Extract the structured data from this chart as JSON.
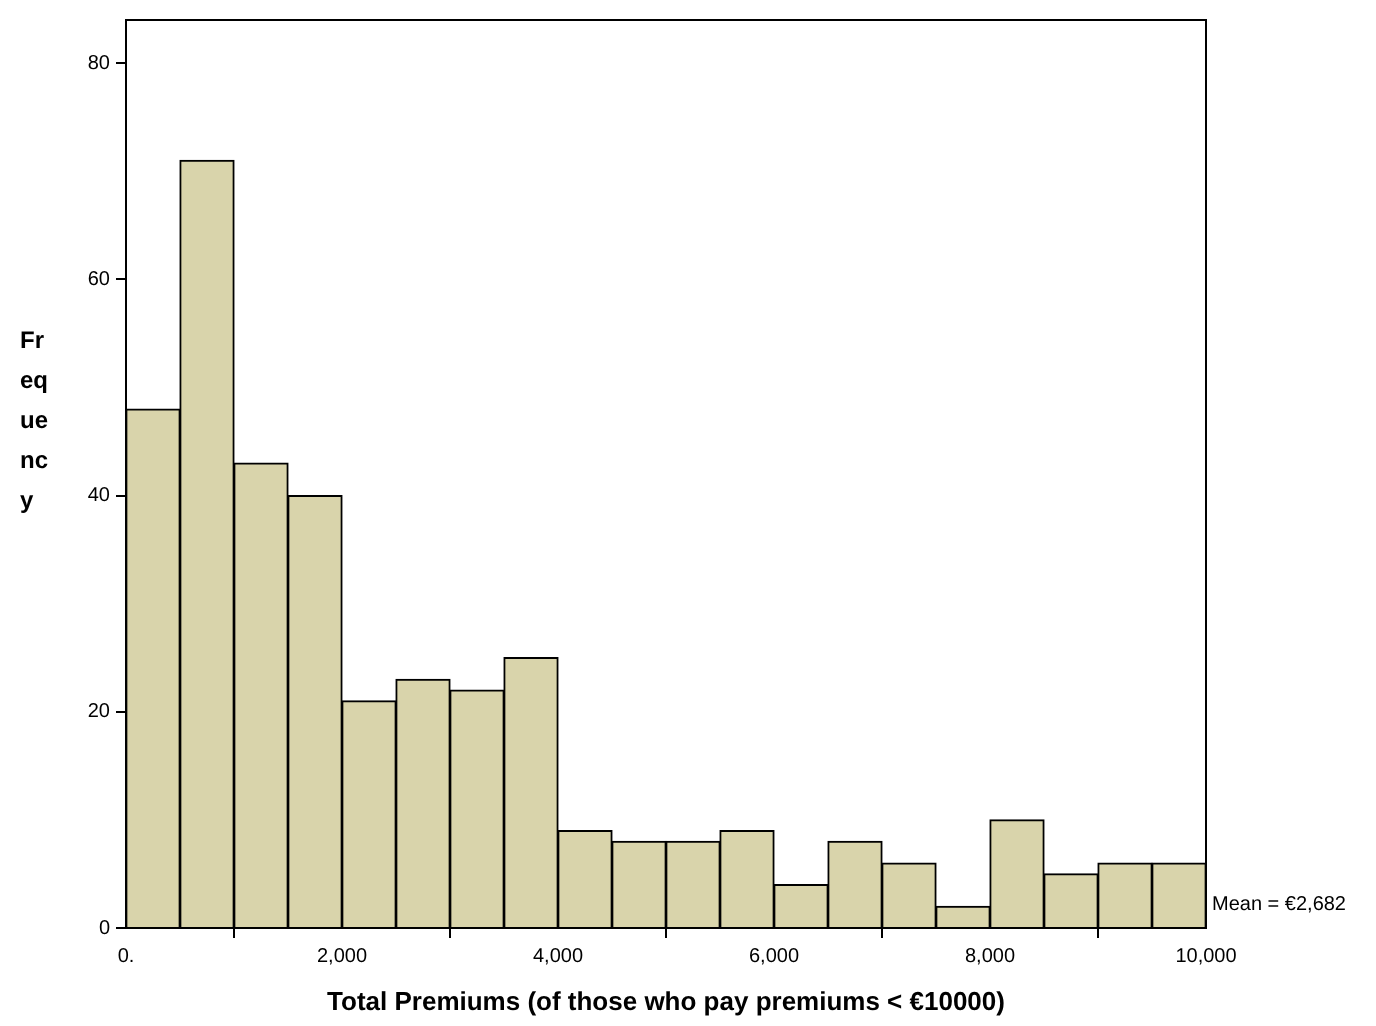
{
  "chart_data": {
    "type": "histogram",
    "xlabel": "Total Premiums (of those who pay premiums < €10000)",
    "ylabel": "Frequency",
    "bins": [
      0,
      500,
      1000,
      1500,
      2000,
      2500,
      3000,
      3500,
      4000,
      4500,
      5000,
      5500,
      6000,
      6500,
      7000,
      7500,
      8000,
      8500,
      9000,
      9500,
      10000
    ],
    "values": [
      48,
      71,
      43,
      40,
      21,
      23,
      22,
      25,
      9,
      8,
      8,
      9,
      4,
      8,
      6,
      2,
      10,
      5,
      6,
      6
    ],
    "color": "#d9d4ab",
    "xlim": [
      0,
      10000
    ],
    "xticks": [
      {
        "value": 0,
        "label": "0."
      },
      {
        "value": 2000,
        "label": "2,000"
      },
      {
        "value": 4000,
        "label": "4,000"
      },
      {
        "value": 6000,
        "label": "6,000"
      },
      {
        "value": 8000,
        "label": "8,000"
      },
      {
        "value": 10000,
        "label": "10,000"
      }
    ],
    "ylim": [
      0,
      84
    ],
    "yticks": [
      0,
      20,
      40,
      60,
      80
    ],
    "grid": false,
    "legend": false,
    "annotations": [
      "Mean = €2,682"
    ]
  }
}
